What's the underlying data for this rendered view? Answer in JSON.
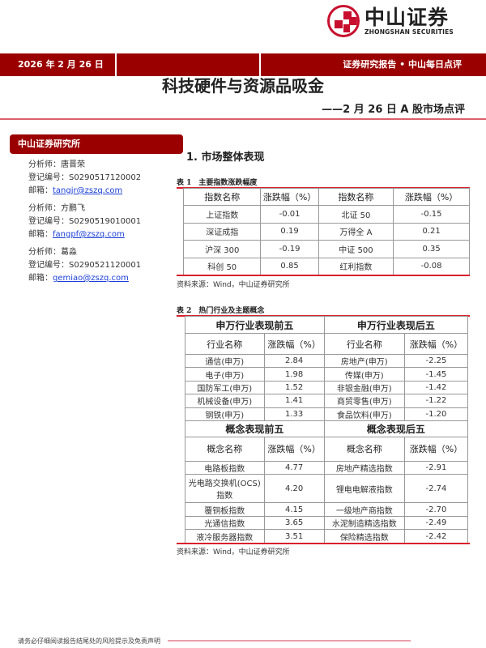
{
  "brand": {
    "name_cn": "中山证券",
    "name_en": "ZHONGSHAN SECURITIES",
    "color": "#9b0000"
  },
  "header": {
    "date": "2026 年 2 月 26 日",
    "report_type": "证券研究报告 • 中山每日点评"
  },
  "title": "科技硬件与资源品吸金",
  "subtitle": "——2 月 26 日 A 股市场点评",
  "sidebar": {
    "title": "中山证券研究所",
    "analysts": [
      {
        "name_label": "分析师：唐晋荣",
        "reg": "登记编号：S0290517120002",
        "email_label": "邮箱：",
        "email": "tangjr@zszq.com"
      },
      {
        "name_label": "分析师：方鹏飞",
        "reg": "登记编号：S0290519010001",
        "email_label": "邮箱：",
        "email": "fangpf@zszq.com"
      },
      {
        "name_label": "分析师：葛淼",
        "reg": "登记编号：S0290521120001",
        "email_label": "邮箱：",
        "email": "gemiao@zszq.com"
      }
    ]
  },
  "section_title": "1. 市场整体表现",
  "table1": {
    "caption": "表 1　主要指数涨跌幅度",
    "headers": [
      "指数名称",
      "涨跌幅（%）",
      "指数名称",
      "涨跌幅（%）"
    ],
    "rows": [
      [
        "上证指数",
        "-0.01",
        "北证 50",
        "-0.15"
      ],
      [
        "深证成指",
        "0.19",
        "万得全 A",
        "0.21"
      ],
      [
        "沪深 300",
        "-0.19",
        "中证 500",
        "0.35"
      ],
      [
        "科创 50",
        "0.85",
        "红利指数",
        "-0.08"
      ]
    ],
    "source": "资料来源：Wind，中山证券研究所"
  },
  "table2": {
    "caption": "表 2　热门行业及主题概念",
    "group1": [
      "申万行业表现前五",
      "申万行业表现后五"
    ],
    "headers1": [
      "行业名称",
      "涨跌幅（%）",
      "行业名称",
      "涨跌幅（%）"
    ],
    "rows1": [
      [
        "通信(申万)",
        "2.84",
        "房地产(申万)",
        "-2.25"
      ],
      [
        "电子(申万)",
        "1.98",
        "传媒(申万)",
        "-1.45"
      ],
      [
        "国防军工(申万)",
        "1.52",
        "非银金融(申万)",
        "-1.42"
      ],
      [
        "机械设备(申万)",
        "1.41",
        "商贸零售(申万)",
        "-1.22"
      ],
      [
        "钢铁(申万)",
        "1.33",
        "食品饮料(申万)",
        "-1.20"
      ]
    ],
    "group2": [
      "概念表现前五",
      "概念表现后五"
    ],
    "headers2": [
      "概念名称",
      "涨跌幅（%）",
      "概念名称",
      "涨跌幅（%）"
    ],
    "rows2": [
      [
        "电路板指数",
        "4.77",
        "房地产精选指数",
        "-2.91"
      ],
      [
        "光电路交换机(OCS)指数",
        "4.20",
        "锂电电解液指数",
        "-2.74"
      ],
      [
        "覆铜板指数",
        "4.15",
        "一级地产商指数",
        "-2.70"
      ],
      [
        "光通信指数",
        "3.65",
        "水泥制造精选指数",
        "-2.49"
      ],
      [
        "液冷服务器指数",
        "3.51",
        "保险精选指数",
        "-2.42"
      ]
    ],
    "source": "资料来源：Wind，中山证券研究所"
  },
  "footer": "请务必仔细阅读报告结尾处的风险提示及免责声明"
}
